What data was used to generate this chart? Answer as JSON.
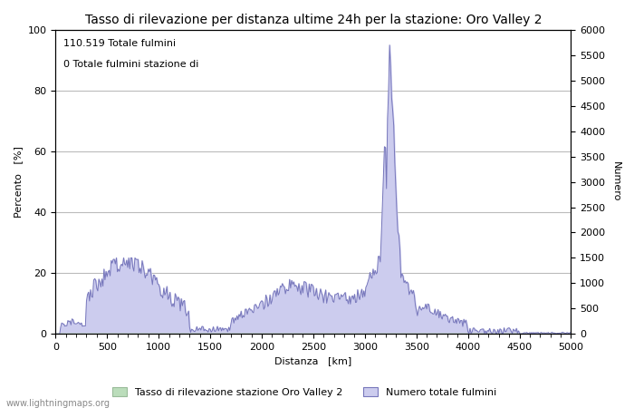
{
  "title": "Tasso di rilevazione per distanza ultime 24h per la stazione: Oro Valley 2",
  "xlabel": "Distanza   [km]",
  "ylabel_left": "Percento   [%]",
  "ylabel_right": "Numero",
  "annotation_line1": "110.519 Totale fulmini",
  "annotation_line2": "0 Totale fulmini stazione di",
  "xlim": [
    0,
    5000
  ],
  "ylim_left": [
    0,
    100
  ],
  "ylim_right": [
    0,
    6000
  ],
  "xticks": [
    0,
    500,
    1000,
    1500,
    2000,
    2500,
    3000,
    3500,
    4000,
    4500,
    5000
  ],
  "yticks_left": [
    0,
    20,
    40,
    60,
    80,
    100
  ],
  "yticks_right": [
    0,
    500,
    1000,
    1500,
    2000,
    2500,
    3000,
    3500,
    4000,
    4500,
    5000,
    5500,
    6000
  ],
  "legend_green_label": "Tasso di rilevazione stazione Oro Valley 2",
  "legend_blue_label": "Numero totale fulmini",
  "green_fill_color": "#bbddbb",
  "green_line_color": "#99bb99",
  "blue_fill_color": "#ccccee",
  "blue_line_color": "#7777bb",
  "watermark": "www.lightningmaps.org",
  "bg_color": "#ffffff",
  "grid_color": "#bbbbbb",
  "title_fontsize": 10,
  "label_fontsize": 8,
  "tick_fontsize": 8,
  "watermark_fontsize": 7
}
